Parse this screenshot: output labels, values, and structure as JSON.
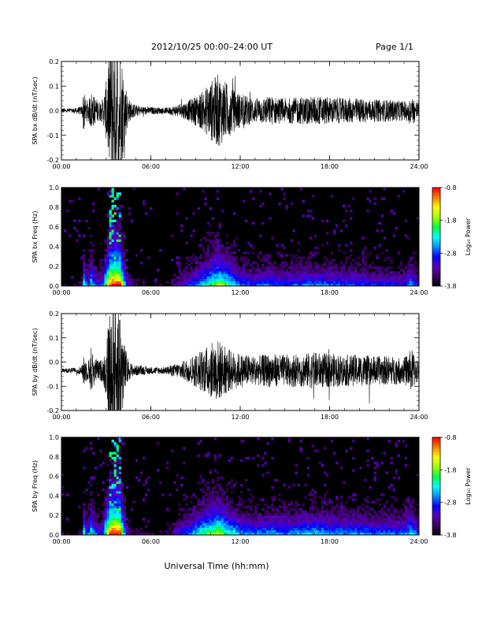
{
  "header": {
    "title": "2012/10/25  00:00–24:00 UT",
    "page": "Page 1/1"
  },
  "xaxis": {
    "label": "Universal Time (hh:mm)",
    "ticks": [
      "00:00",
      "06:00",
      "12:00",
      "18:00",
      "24:00"
    ]
  },
  "colorbar": {
    "label": "Log₁₀ Power",
    "ticks": [
      "-0.8",
      "-1.8",
      "-2.8",
      "-3.8"
    ],
    "range": [
      -3.8,
      -0.8
    ],
    "colors": [
      "#000000",
      "#3a0060",
      "#5a00c0",
      "#0000ff",
      "#0090ff",
      "#00ffff",
      "#00ff40",
      "#a0ff00",
      "#ffff00",
      "#ff8000",
      "#ff0000"
    ]
  },
  "chart_data": [
    {
      "type": "line",
      "ylabel": "SPA bx dB/dt (nT/sec)",
      "xlim": [
        0,
        24
      ],
      "ylim": [
        -0.2,
        0.2
      ],
      "yticks": [
        "-0.2",
        "-0.1",
        "0.0",
        "0.1",
        "0.2"
      ],
      "line_color": "#000000",
      "envelope": {
        "x": [
          0,
          0.5,
          1.0,
          1.4,
          1.5,
          1.6,
          1.8,
          2.0,
          2.2,
          2.5,
          2.8,
          3.0,
          3.3,
          3.6,
          3.9,
          4.2,
          4.5,
          4.8,
          5.2,
          6.0,
          7.0,
          7.5,
          8.0,
          8.5,
          9.0,
          9.5,
          10.0,
          10.5,
          11.0,
          11.5,
          12.0,
          13.0,
          14.0,
          15.0,
          16.0,
          17.0,
          18.0,
          19.0,
          20.0,
          21.0,
          22.0,
          23.0,
          23.5,
          24.0
        ],
        "amp": [
          0.01,
          0.01,
          0.012,
          0.02,
          0.1,
          0.05,
          0.04,
          0.08,
          0.06,
          0.04,
          0.05,
          0.12,
          0.3,
          0.3,
          0.3,
          0.15,
          0.05,
          0.03,
          0.02,
          0.015,
          0.012,
          0.02,
          0.03,
          0.04,
          0.06,
          0.08,
          0.12,
          0.15,
          0.12,
          0.09,
          0.07,
          0.05,
          0.06,
          0.05,
          0.055,
          0.06,
          0.055,
          0.05,
          0.05,
          0.045,
          0.045,
          0.04,
          0.06,
          0.035
        ],
        "baseline": 0.0
      }
    },
    {
      "type": "heatmap",
      "ylabel": "SPA bx Freq (Hz)",
      "xlim": [
        0,
        24
      ],
      "ylim": [
        0.0,
        1.0
      ],
      "yticks": [
        "0.0",
        "0.2",
        "0.4",
        "0.6",
        "0.8",
        "1.0"
      ],
      "zlim": [
        -3.8,
        -0.8
      ],
      "activity": {
        "x": [
          0,
          0.5,
          1.0,
          1.4,
          1.5,
          1.6,
          1.8,
          2.0,
          2.2,
          2.5,
          2.8,
          3.0,
          3.3,
          3.6,
          3.9,
          4.2,
          4.5,
          4.8,
          5.2,
          6.0,
          7.0,
          7.5,
          8.0,
          8.5,
          9.0,
          9.5,
          10.0,
          10.5,
          11.0,
          11.5,
          12.0,
          13.0,
          14.0,
          15.0,
          16.0,
          17.0,
          18.0,
          19.0,
          20.0,
          21.0,
          22.0,
          23.0,
          23.5,
          24.0
        ],
        "level": [
          0.05,
          0.05,
          0.06,
          0.15,
          0.6,
          0.4,
          0.35,
          0.55,
          0.4,
          0.3,
          0.35,
          0.7,
          1.0,
          1.0,
          1.0,
          0.6,
          0.2,
          0.12,
          0.08,
          0.06,
          0.05,
          0.15,
          0.25,
          0.3,
          0.4,
          0.5,
          0.6,
          0.7,
          0.65,
          0.5,
          0.4,
          0.35,
          0.4,
          0.35,
          0.38,
          0.4,
          0.38,
          0.35,
          0.35,
          0.32,
          0.32,
          0.3,
          0.45,
          0.25
        ]
      }
    },
    {
      "type": "line",
      "ylabel": "SPA by dB/dt (nT/sec)",
      "xlim": [
        0,
        24
      ],
      "ylim": [
        -0.2,
        0.2
      ],
      "yticks": [
        "-0.2",
        "-0.1",
        "0.0",
        "0.1",
        "0.2"
      ],
      "line_color": "#000000",
      "envelope": {
        "x": [
          0,
          0.5,
          1.0,
          1.4,
          1.5,
          1.6,
          1.8,
          2.0,
          2.2,
          2.5,
          2.8,
          3.0,
          3.3,
          3.6,
          3.9,
          4.2,
          4.5,
          4.8,
          5.2,
          6.0,
          7.0,
          7.5,
          8.0,
          8.5,
          9.0,
          9.5,
          10.0,
          10.5,
          11.0,
          11.5,
          12.0,
          13.0,
          14.0,
          15.0,
          16.0,
          17.0,
          18.0,
          19.0,
          20.0,
          21.0,
          22.0,
          23.0,
          23.5,
          24.0
        ],
        "amp": [
          0.008,
          0.01,
          0.012,
          0.02,
          0.09,
          0.05,
          0.04,
          0.1,
          0.06,
          0.04,
          0.05,
          0.12,
          0.3,
          0.3,
          0.3,
          0.12,
          0.04,
          0.025,
          0.02,
          0.015,
          0.015,
          0.025,
          0.035,
          0.05,
          0.07,
          0.09,
          0.11,
          0.13,
          0.1,
          0.08,
          0.07,
          0.06,
          0.07,
          0.065,
          0.07,
          0.075,
          0.07,
          0.065,
          0.065,
          0.06,
          0.06,
          0.055,
          0.09,
          0.04
        ],
        "baseline": -0.035
      }
    },
    {
      "type": "heatmap",
      "ylabel": "SPA by Freq (Hz)",
      "xlim": [
        0,
        24
      ],
      "ylim": [
        0.0,
        1.0
      ],
      "yticks": [
        "0.0",
        "0.2",
        "0.4",
        "0.6",
        "0.8",
        "1.0"
      ],
      "zlim": [
        -3.8,
        -0.8
      ],
      "activity": {
        "x": [
          0,
          0.5,
          1.0,
          1.4,
          1.5,
          1.6,
          1.8,
          2.0,
          2.2,
          2.5,
          2.8,
          3.0,
          3.3,
          3.6,
          3.9,
          4.2,
          4.5,
          4.8,
          5.2,
          6.0,
          7.0,
          7.5,
          8.0,
          8.5,
          9.0,
          9.5,
          10.0,
          10.5,
          11.0,
          11.5,
          12.0,
          13.0,
          14.0,
          15.0,
          16.0,
          17.0,
          18.0,
          19.0,
          20.0,
          21.0,
          22.0,
          23.0,
          23.5,
          24.0
        ],
        "level": [
          0.05,
          0.05,
          0.06,
          0.15,
          0.6,
          0.4,
          0.35,
          0.6,
          0.4,
          0.3,
          0.35,
          0.7,
          1.0,
          1.0,
          1.0,
          0.55,
          0.18,
          0.1,
          0.08,
          0.06,
          0.06,
          0.18,
          0.3,
          0.38,
          0.5,
          0.6,
          0.68,
          0.75,
          0.65,
          0.55,
          0.45,
          0.4,
          0.45,
          0.42,
          0.45,
          0.48,
          0.45,
          0.42,
          0.42,
          0.4,
          0.4,
          0.38,
          0.55,
          0.3
        ]
      }
    }
  ]
}
